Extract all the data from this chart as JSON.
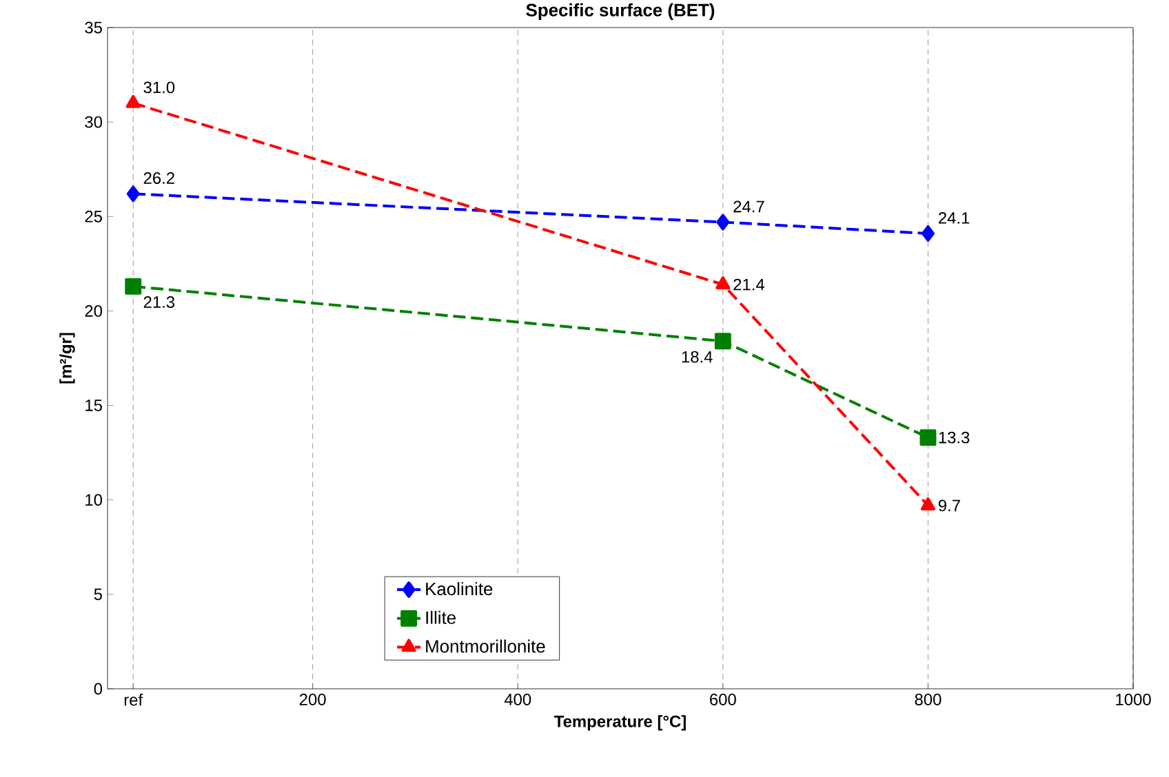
{
  "chart_data": {
    "type": "line",
    "title": "Specific surface (BET)",
    "xlabel": "Temperature [°C]",
    "ylabel": "[m²/gr]",
    "x": [
      25,
      600,
      800
    ],
    "xlim": [
      0,
      1000
    ],
    "xticks": [
      {
        "value": 25,
        "label": "ref"
      },
      200,
      400,
      600,
      800,
      1000
    ],
    "ylim": [
      0,
      35
    ],
    "yticks": [
      0,
      5,
      10,
      15,
      20,
      25,
      30,
      35
    ],
    "grid": "x",
    "legend": "bottom",
    "line_style": "dashed",
    "series": [
      {
        "name": "Kaolinite",
        "color": "#0000ff",
        "marker": "diamond",
        "values": [
          26.2,
          24.7,
          24.1
        ],
        "value_labels": [
          "26.2",
          "24.7",
          "24.1"
        ]
      },
      {
        "name": "Illite",
        "color": "#008000",
        "marker": "square",
        "values": [
          21.3,
          18.4,
          13.3
        ],
        "value_labels": [
          "21.3",
          "18.4",
          "13.3"
        ]
      },
      {
        "name": "Montmorillonite",
        "color": "#ff0000",
        "marker": "triangle",
        "values": [
          31.0,
          21.4,
          9.7
        ],
        "value_labels": [
          "31.0",
          "21.4",
          "9.7"
        ]
      }
    ]
  }
}
